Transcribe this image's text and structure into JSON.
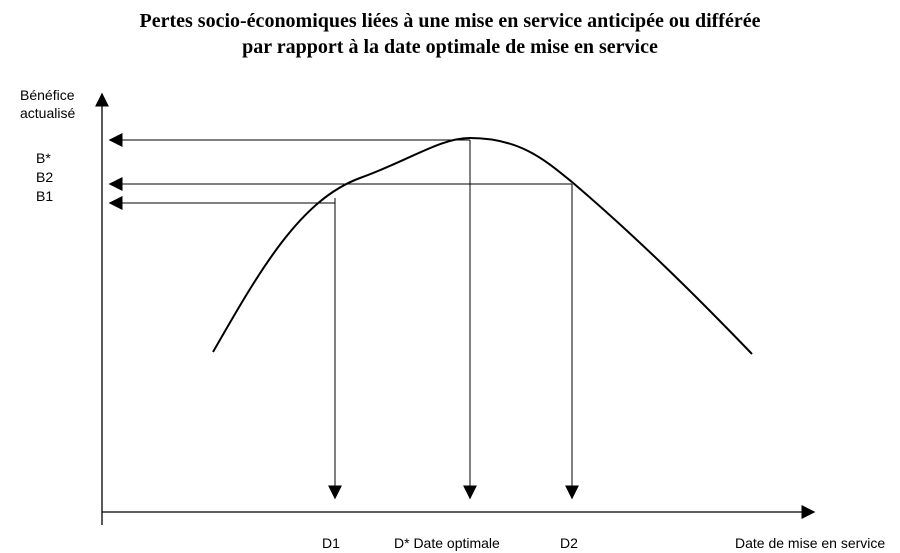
{
  "title": [
    "Pertes socio-économiques liées à une mise en service anticipée ou différée",
    "par rapport à la date optimale de mise en service"
  ],
  "y_axis_label": [
    "Bénéfice",
    "actualisé"
  ],
  "y_labels": [
    "B*",
    "B2",
    "B1"
  ],
  "x_labels": [
    "D1",
    "D* Date optimale",
    "D2"
  ],
  "x_axis_label": "Date de mise en service"
}
